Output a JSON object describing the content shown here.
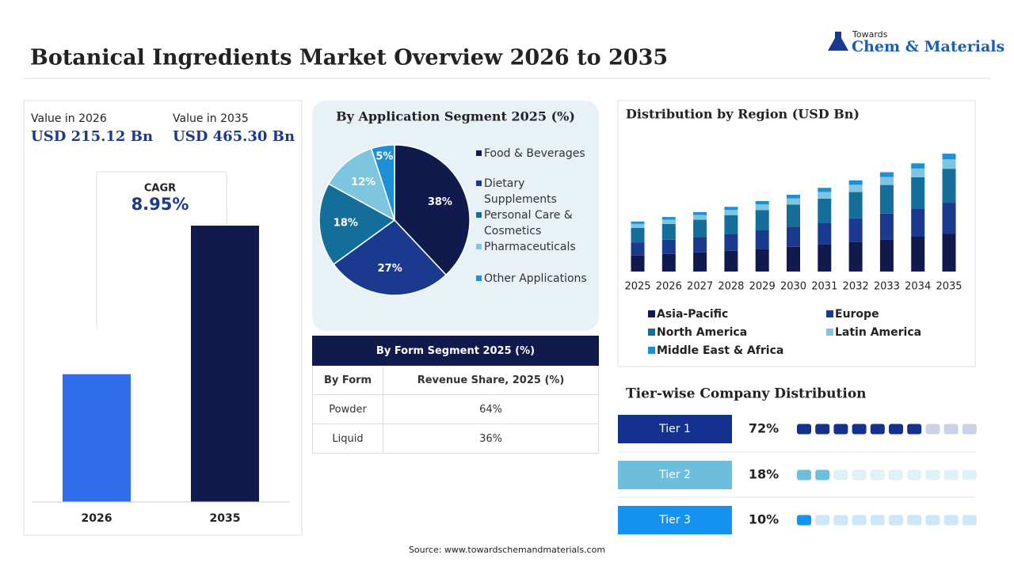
{
  "header": {
    "title": "Botanical Ingredients Market Overview 2026 to 2035",
    "logo_top": "Towards",
    "logo_main": "Chem & Materials"
  },
  "chart_data": [
    {
      "type": "bar",
      "categories": [
        "2026",
        "2035"
      ],
      "values": [
        215.12,
        465.3
      ],
      "value_labels": [
        "USD 215.12 Bn",
        "USD 465.30 Bn"
      ],
      "value_headers": [
        "Value in 2026",
        "Value in 2035"
      ],
      "colors": [
        "#2f6fed",
        "#111a4d"
      ],
      "annotations": [
        "CAGR",
        "8.95%"
      ]
    },
    {
      "type": "pie",
      "title": "By Application Segment 2025 (%)",
      "categories": [
        "Food & Beverages",
        "Dietary Supplements",
        "Personal Care & Cosmetics",
        "Pharmaceuticals",
        "Other Applications"
      ],
      "values": [
        38,
        27,
        18,
        12,
        5
      ],
      "value_labels": [
        "38%",
        "27%",
        "18%",
        "12%",
        "5%"
      ],
      "colors": [
        "#111a4d",
        "#1a3a8f",
        "#156e99",
        "#7ec6e0",
        "#1d8fd6"
      ]
    },
    {
      "type": "stacked_bar",
      "title": "Distribution by Region (USD Bn)",
      "categories": [
        "2025",
        "2026",
        "2027",
        "2028",
        "2029",
        "2030",
        "2031",
        "2032",
        "2033",
        "2034",
        "2035"
      ],
      "series": [
        {
          "name": "Asia-Pacific",
          "color": "#111a4d",
          "values": [
            63.6,
            69.3,
            75.5,
            82.2,
            89.6,
            97.6,
            106.4,
            115.9,
            126.2,
            137.5,
            149.8
          ]
        },
        {
          "name": "Europe",
          "color": "#1a3a8f",
          "values": [
            51.7,
            56.4,
            61.4,
            66.9,
            72.9,
            79.4,
            86.5,
            94.3,
            102.7,
            111.9,
            121.9
          ]
        },
        {
          "name": "North America",
          "color": "#156e99",
          "values": [
            56.9,
            62.0,
            67.5,
            73.6,
            80.1,
            87.3,
            95.1,
            103.6,
            112.9,
            123.0,
            134.0
          ]
        },
        {
          "name": "Latin America",
          "color": "#7ec6e0",
          "values": [
            15.8,
            17.2,
            18.8,
            20.4,
            22.3,
            24.2,
            26.4,
            28.8,
            31.4,
            34.2,
            37.2
          ]
        },
        {
          "name": "Middle East & Africa",
          "color": "#1d8fd6",
          "values": [
            9.5,
            10.3,
            11.3,
            12.3,
            13.4,
            14.5,
            15.9,
            17.3,
            18.8,
            20.5,
            22.3
          ]
        }
      ]
    },
    {
      "type": "waffle",
      "title": "Tier-wise Company Distribution",
      "categories": [
        "Tier 1",
        "Tier 2",
        "Tier 3"
      ],
      "values": [
        72,
        18,
        10
      ],
      "value_labels": [
        "72%",
        "18%",
        "10%"
      ],
      "colors": [
        "#14318f",
        "#6cbfdc",
        "#1593f0"
      ]
    }
  ],
  "table": {
    "title": "By Form Segment 2025 (%)",
    "columns": [
      "By Form",
      "Revenue Share, 2025 (%)"
    ],
    "rows": [
      [
        "Powder",
        "64%"
      ],
      [
        "Liquid",
        "36%"
      ]
    ]
  },
  "source": "Source: www.towardschemandmaterials.com"
}
